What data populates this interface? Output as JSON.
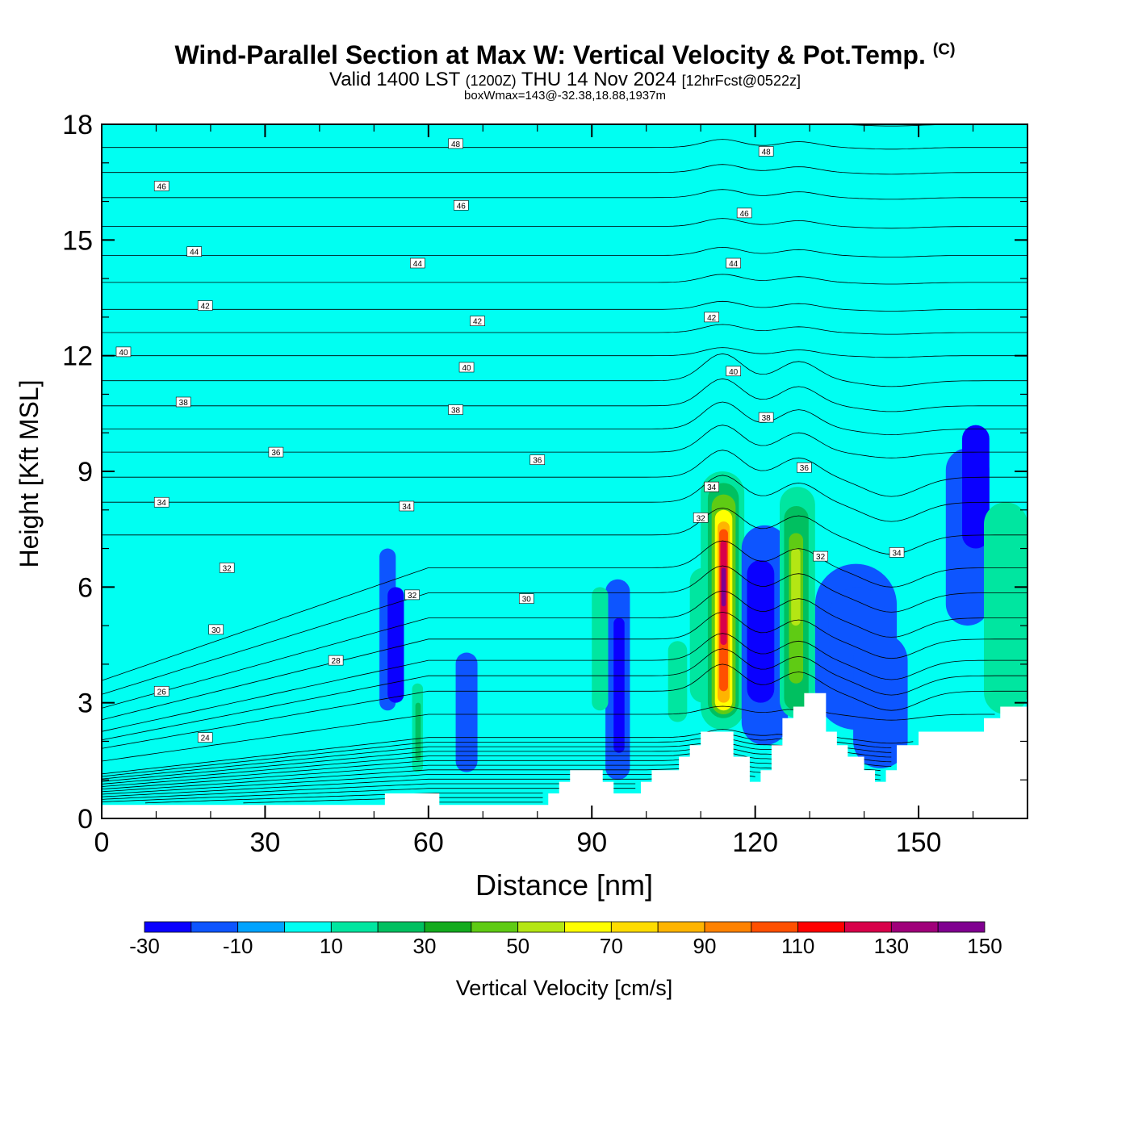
{
  "title": {
    "main": "Wind-Parallel Section at Max W: Vertical Velocity & Pot.Temp.",
    "copyright": "(C)",
    "valid_prefix": "Valid 1400 LST",
    "valid_utc": "(1200Z)",
    "valid_date": "THU 14 Nov 2024",
    "forecast": "[12hrFcst@0522z]",
    "boxwmax": "boxWmax=143@-32.38,18.88,1937m"
  },
  "chart_data": {
    "type": "heatmap",
    "title": "Wind-Parallel Section at Max W: Vertical Velocity & Pot.Temp.",
    "xlabel": "Distance [nm]",
    "ylabel": "Height [Kft MSL]",
    "xlim": [
      0,
      170
    ],
    "ylim": [
      0,
      18
    ],
    "xticks": [
      0,
      30,
      60,
      90,
      120,
      150
    ],
    "yticks": [
      0,
      3,
      6,
      9,
      12,
      15,
      18
    ],
    "background_value_cm_s": 0,
    "colorbar": {
      "label": "Vertical Velocity [cm/s]",
      "tick_labels": [
        "-30",
        "-10",
        "10",
        "30",
        "50",
        "70",
        "90",
        "110",
        "130",
        "150"
      ],
      "bounds": [
        -30,
        -20,
        -10,
        0,
        10,
        20,
        30,
        40,
        50,
        60,
        70,
        80,
        90,
        100,
        110,
        120,
        130,
        140,
        150
      ],
      "colors": [
        "#0a00ff",
        "#0d55ff",
        "#00a3ff",
        "#00fff2",
        "#00e6a0",
        "#00c060",
        "#14ab1e",
        "#5fcb14",
        "#b4e614",
        "#ffff00",
        "#ffdc00",
        "#ffb400",
        "#ff8200",
        "#ff5000",
        "#ff0000",
        "#d8004a",
        "#a0007a",
        "#800090"
      ]
    },
    "terrain_kft": [
      [
        0,
        0.35
      ],
      [
        52,
        0.35
      ],
      [
        52,
        0.65
      ],
      [
        62,
        0.65
      ],
      [
        62,
        0.35
      ],
      [
        82,
        0.35
      ],
      [
        82,
        0.65
      ],
      [
        84,
        0.65
      ],
      [
        84,
        0.95
      ],
      [
        86,
        0.95
      ],
      [
        86,
        1.25
      ],
      [
        92,
        1.25
      ],
      [
        92,
        0.95
      ],
      [
        94,
        0.95
      ],
      [
        94,
        0.65
      ],
      [
        99,
        0.65
      ],
      [
        99,
        0.95
      ],
      [
        101,
        0.95
      ],
      [
        101,
        1.25
      ],
      [
        106,
        1.25
      ],
      [
        106,
        1.6
      ],
      [
        108,
        1.6
      ],
      [
        108,
        1.9
      ],
      [
        110,
        1.9
      ],
      [
        110,
        2.25
      ],
      [
        116,
        2.25
      ],
      [
        116,
        1.6
      ],
      [
        119,
        1.6
      ],
      [
        119,
        0.95
      ],
      [
        121,
        0.95
      ],
      [
        121,
        1.25
      ],
      [
        123,
        1.25
      ],
      [
        123,
        1.9
      ],
      [
        125,
        1.9
      ],
      [
        125,
        2.6
      ],
      [
        127,
        2.6
      ],
      [
        127,
        2.9
      ],
      [
        129,
        2.9
      ],
      [
        129,
        3.25
      ],
      [
        133,
        3.25
      ],
      [
        133,
        2.25
      ],
      [
        135,
        2.25
      ],
      [
        135,
        1.9
      ],
      [
        137,
        1.9
      ],
      [
        137,
        1.6
      ],
      [
        140,
        1.6
      ],
      [
        140,
        1.25
      ],
      [
        142,
        1.25
      ],
      [
        142,
        0.95
      ],
      [
        144,
        0.95
      ],
      [
        144,
        1.25
      ],
      [
        146,
        1.25
      ],
      [
        146,
        1.9
      ],
      [
        150,
        1.9
      ],
      [
        150,
        2.25
      ],
      [
        162,
        2.25
      ],
      [
        162,
        2.6
      ],
      [
        165,
        2.6
      ],
      [
        165,
        2.9
      ],
      [
        170,
        2.9
      ]
    ],
    "vertical_velocity_cells_cm_s": [
      {
        "x": [
          0,
          170
        ],
        "z": [
          0,
          18
        ],
        "w": 0
      },
      {
        "x": [
          29,
          40
        ],
        "z": [
          13.5,
          17.6
        ],
        "w": 5
      },
      {
        "x": [
          43,
          52
        ],
        "z": [
          14.0,
          17.8
        ],
        "w": 5
      },
      {
        "x": [
          52,
          60
        ],
        "z": [
          11.0,
          17.5
        ],
        "w": 5
      },
      {
        "x": [
          74,
          81
        ],
        "z": [
          13.0,
          17.8
        ],
        "w": 5
      },
      {
        "x": [
          92,
          96
        ],
        "z": [
          12.0,
          17.5
        ],
        "w": 5
      },
      {
        "x": [
          100,
          110
        ],
        "z": [
          13.5,
          17.8
        ],
        "w": 5
      },
      {
        "x": [
          152,
          162
        ],
        "z": [
          10.0,
          17.8
        ],
        "w": 5
      },
      {
        "x": [
          163,
          170
        ],
        "z": [
          8.5,
          17.8
        ],
        "w": 5
      },
      {
        "x": [
          6,
          13
        ],
        "z": [
          10.2,
          11.2
        ],
        "w": 5
      },
      {
        "x": [
          19,
          21
        ],
        "z": [
          8.2,
          9.2
        ],
        "w": 5
      },
      {
        "x": [
          24,
          25.5
        ],
        "z": [
          12.2,
          14.0
        ],
        "w": 5
      },
      {
        "x": [
          128,
          141
        ],
        "z": [
          8.0,
          10.2
        ],
        "w": 5
      },
      {
        "x": [
          141,
          153
        ],
        "z": [
          7.2,
          9.6
        ],
        "w": 5
      },
      {
        "x": [
          41,
          48
        ],
        "z": [
          0.35,
          1.8
        ],
        "w": 5
      },
      {
        "x": [
          47,
          55
        ],
        "z": [
          3.5,
          6.6
        ],
        "w": 5
      },
      {
        "x": [
          51,
          54
        ],
        "z": [
          2.8,
          7.0
        ],
        "w": -15
      },
      {
        "x": [
          52.5,
          55.5
        ],
        "z": [
          3.0,
          6.0
        ],
        "w": -25
      },
      {
        "x": [
          57,
          59
        ],
        "z": [
          1.2,
          3.5
        ],
        "w": 15
      },
      {
        "x": [
          57.6,
          58.6
        ],
        "z": [
          1.5,
          3.0
        ],
        "w": 25
      },
      {
        "x": [
          65,
          69
        ],
        "z": [
          1.2,
          4.3
        ],
        "w": -15
      },
      {
        "x": [
          92.5,
          97
        ],
        "z": [
          1.0,
          6.2
        ],
        "w": -15
      },
      {
        "x": [
          94,
          96
        ],
        "z": [
          1.7,
          5.2
        ],
        "w": -25
      },
      {
        "x": [
          90,
          93
        ],
        "z": [
          2.8,
          6.0
        ],
        "w": 15
      },
      {
        "x": [
          104,
          107.5
        ],
        "z": [
          2.5,
          4.6
        ],
        "w": 15
      },
      {
        "x": [
          108,
          113
        ],
        "z": [
          3.0,
          6.5
        ],
        "w": 15
      },
      {
        "x": [
          110,
          118
        ],
        "z": [
          2.3,
          9.0
        ],
        "w": 15
      },
      {
        "x": [
          111.3,
          117
        ],
        "z": [
          2.6,
          8.7
        ],
        "w": 25
      },
      {
        "x": [
          112,
          116.4
        ],
        "z": [
          2.7,
          8.4
        ],
        "w": 45
      },
      {
        "x": [
          112.6,
          115.8
        ],
        "z": [
          2.8,
          8.0
        ],
        "w": 65
      },
      {
        "x": [
          113.1,
          115.3
        ],
        "z": [
          3.0,
          7.7
        ],
        "w": 85
      },
      {
        "x": [
          113.4,
          115
        ],
        "z": [
          3.3,
          7.5
        ],
        "w": 105
      },
      {
        "x": [
          113.6,
          114.8
        ],
        "z": [
          4.5,
          7.2
        ],
        "w": 125
      },
      {
        "x": [
          113.8,
          114.6
        ],
        "z": [
          5.5,
          6.5
        ],
        "w": 143
      },
      {
        "x": [
          117.5,
          126
        ],
        "z": [
          1.9,
          7.6
        ],
        "w": -15
      },
      {
        "x": [
          118.5,
          123.5
        ],
        "z": [
          3.0,
          6.7
        ],
        "w": -25
      },
      {
        "x": [
          124.5,
          131
        ],
        "z": [
          2.6,
          8.6
        ],
        "w": 15
      },
      {
        "x": [
          125.3,
          129.8
        ],
        "z": [
          2.8,
          8.1
        ],
        "w": 25
      },
      {
        "x": [
          126.2,
          128.8
        ],
        "z": [
          3.5,
          7.4
        ],
        "w": 45
      },
      {
        "x": [
          126.6,
          128.3
        ],
        "z": [
          5.0,
          7.0
        ],
        "w": 55
      },
      {
        "x": [
          131,
          146
        ],
        "z": [
          2.3,
          6.6
        ],
        "w": -15
      },
      {
        "x": [
          133.5,
          144
        ],
        "z": [
          4.0,
          6.0
        ],
        "w": -15
      },
      {
        "x": [
          138,
          148
        ],
        "z": [
          1.3,
          4.8
        ],
        "w": -15
      },
      {
        "x": [
          155,
          163
        ],
        "z": [
          5.0,
          9.6
        ],
        "w": -15
      },
      {
        "x": [
          158,
          163
        ],
        "z": [
          7.0,
          10.2
        ],
        "w": -25
      },
      {
        "x": [
          162,
          170
        ],
        "z": [
          2.7,
          8.2
        ],
        "w": 15
      },
      {
        "x": [
          164,
          170
        ],
        "z": [
          3.5,
          6.8
        ],
        "w": 15
      }
    ],
    "theta_contour_labels": [
      {
        "text": "48",
        "x": 65,
        "z": 17.5
      },
      {
        "text": "48",
        "x": 122,
        "z": 17.3
      },
      {
        "text": "46",
        "x": 11,
        "z": 16.4
      },
      {
        "text": "46",
        "x": 66,
        "z": 15.9
      },
      {
        "text": "46",
        "x": 118,
        "z": 15.7
      },
      {
        "text": "44",
        "x": 17,
        "z": 14.7
      },
      {
        "text": "44",
        "x": 58,
        "z": 14.4
      },
      {
        "text": "44",
        "x": 116,
        "z": 14.4
      },
      {
        "text": "42",
        "x": 19,
        "z": 13.3
      },
      {
        "text": "42",
        "x": 69,
        "z": 12.9
      },
      {
        "text": "42",
        "x": 112,
        "z": 13.0
      },
      {
        "text": "40",
        "x": 4,
        "z": 12.1
      },
      {
        "text": "40",
        "x": 67,
        "z": 11.7
      },
      {
        "text": "40",
        "x": 116,
        "z": 11.6
      },
      {
        "text": "38",
        "x": 15,
        "z": 10.8
      },
      {
        "text": "38",
        "x": 65,
        "z": 10.6
      },
      {
        "text": "38",
        "x": 122,
        "z": 10.4
      },
      {
        "text": "36",
        "x": 32,
        "z": 9.5
      },
      {
        "text": "36",
        "x": 80,
        "z": 9.3
      },
      {
        "text": "36",
        "x": 129,
        "z": 9.1
      },
      {
        "text": "34",
        "x": 11,
        "z": 8.2
      },
      {
        "text": "34",
        "x": 56,
        "z": 8.1
      },
      {
        "text": "34",
        "x": 112,
        "z": 8.6
      },
      {
        "text": "34",
        "x": 146,
        "z": 6.9
      },
      {
        "text": "32",
        "x": 23,
        "z": 6.5
      },
      {
        "text": "32",
        "x": 57,
        "z": 5.8
      },
      {
        "text": "32",
        "x": 110,
        "z": 7.8
      },
      {
        "text": "32",
        "x": 132,
        "z": 6.8
      },
      {
        "text": "30",
        "x": 21,
        "z": 4.9
      },
      {
        "text": "30",
        "x": 78,
        "z": 5.7
      },
      {
        "text": "28",
        "x": 43,
        "z": 4.1
      },
      {
        "text": "26",
        "x": 11,
        "z": 3.3
      },
      {
        "text": "24",
        "x": 19,
        "z": 2.1
      }
    ]
  }
}
